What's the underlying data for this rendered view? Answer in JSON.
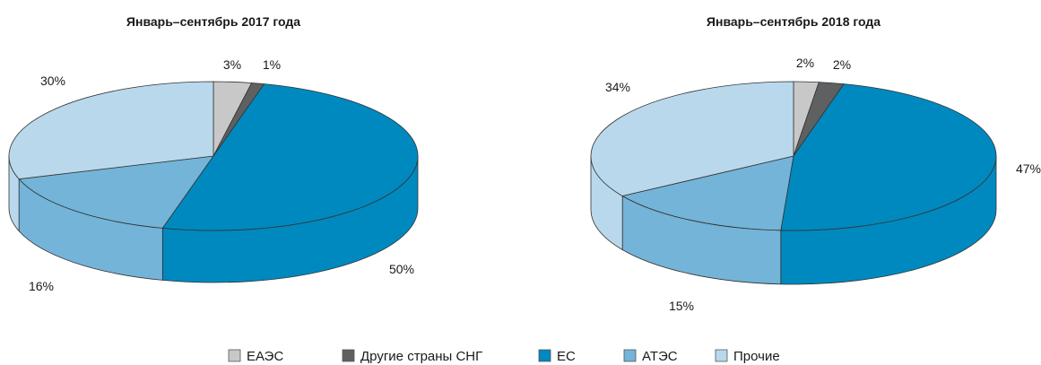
{
  "chart_data": [
    {
      "type": "pie",
      "title": "Январь–сентябрь 2017 года",
      "categories": [
        "ЕАЭС",
        "Другие страны СНГ",
        "ЕС",
        "АТЭС",
        "Прочие"
      ],
      "values": [
        3,
        1,
        50,
        16,
        30
      ],
      "labels": [
        "3%",
        "1%",
        "50%",
        "16%",
        "30%"
      ]
    },
    {
      "type": "pie",
      "title": "Январь–сентябрь 2018 года",
      "categories": [
        "ЕАЭС",
        "Другие страны СНГ",
        "ЕС",
        "АТЭС",
        "Прочие"
      ],
      "values": [
        2,
        2,
        47,
        15,
        34
      ],
      "labels": [
        "2%",
        "2%",
        "47%",
        "15%",
        "34%"
      ]
    }
  ],
  "legend": [
    {
      "label": "ЕАЭС",
      "color": "#c8c8c8"
    },
    {
      "label": "Другие страны СНГ",
      "color": "#5f6062"
    },
    {
      "label": "ЕС",
      "color": "#0089bf"
    },
    {
      "label": "АТЭС",
      "color": "#74b4d8"
    },
    {
      "label": "Прочие",
      "color": "#b9d8ec"
    }
  ],
  "colors": {
    "ЕАЭС": "#c8c8c8",
    "Другие страны СНГ": "#5f6062",
    "ЕС": "#0089bf",
    "АТЭС": "#74b4d8",
    "Прочие": "#b9d8ec"
  }
}
